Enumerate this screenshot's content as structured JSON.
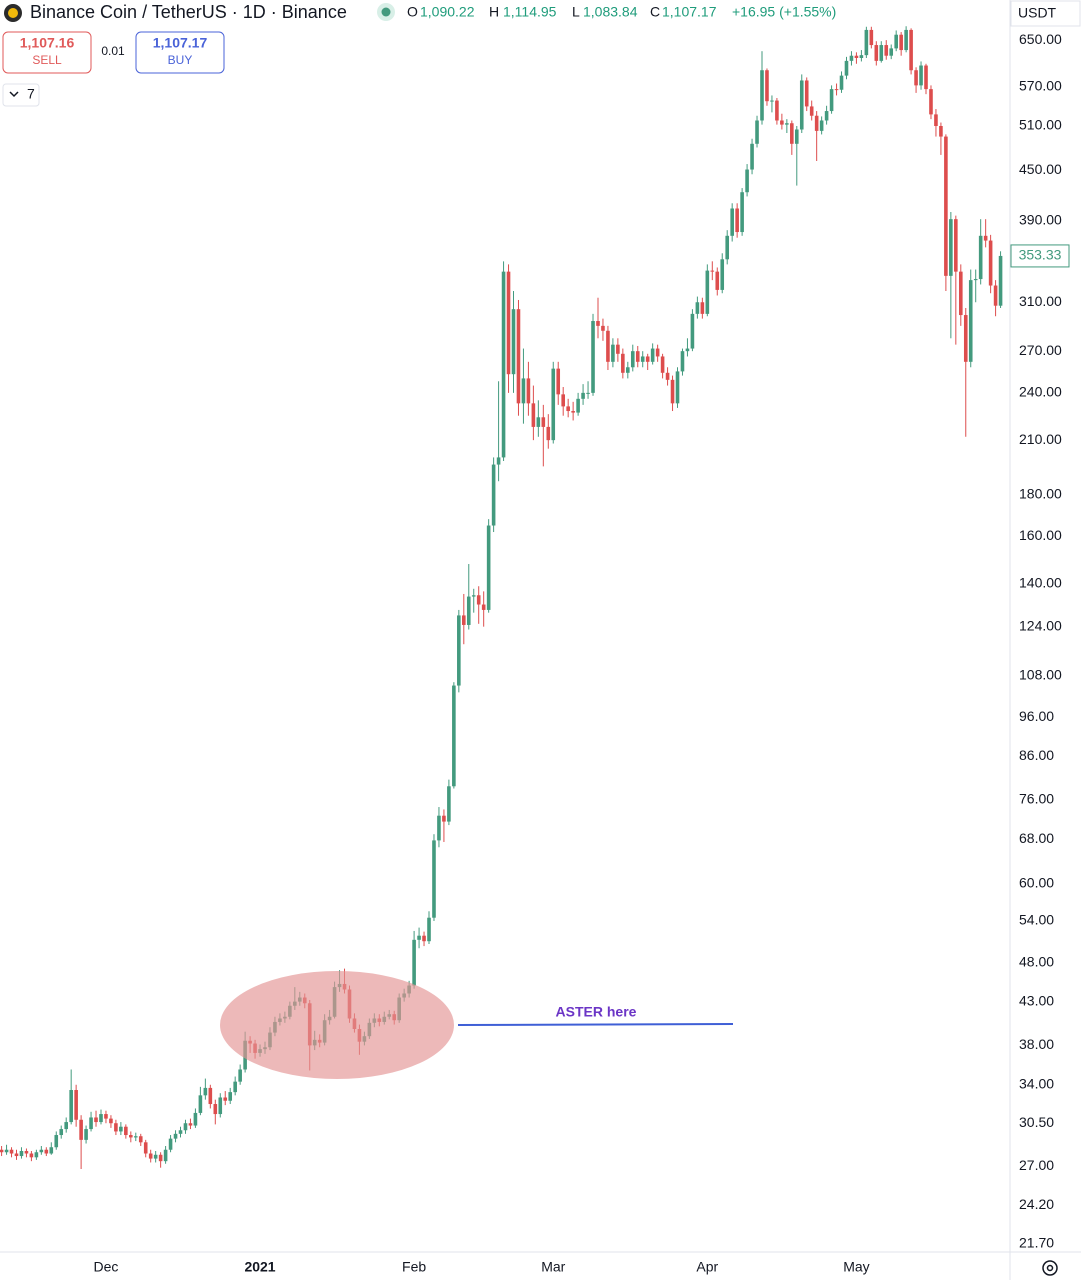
{
  "chart_data": {
    "type": "candlestick",
    "title": "Binance Coin / TetherUS · 1D · Binance",
    "legend_ohlc": [
      {
        "label": "O",
        "value": "1,090.22"
      },
      {
        "label": "H",
        "value": "1,114.95"
      },
      {
        "label": "L",
        "value": "1,083.84"
      },
      {
        "label": "C",
        "value": "1,107.17"
      }
    ],
    "change": "+16.95 (+1.55%)",
    "sell_price": "1,107.16",
    "sell_label": "SELL",
    "spread": "0.01",
    "buy_price": "1,107.17",
    "buy_label": "BUY",
    "indicator_count": "7",
    "currency": "USDT",
    "last_price": 353.33,
    "annotation": "ASTER here",
    "up_color": "#439a7e",
    "down_color": "#dd4d4d",
    "log_scale": true,
    "grid": false,
    "ylim": [
      21.2,
      728
    ],
    "yticks": [
      {
        "value": 650,
        "label": "650.00"
      },
      {
        "value": 570,
        "label": "570.00"
      },
      {
        "value": 510,
        "label": "510.00"
      },
      {
        "value": 450,
        "label": "450.00"
      },
      {
        "value": 390,
        "label": "390.00"
      },
      {
        "value": 310,
        "label": "310.00"
      },
      {
        "value": 270,
        "label": "270.00"
      },
      {
        "value": 240,
        "label": "240.00"
      },
      {
        "value": 210,
        "label": "210.00"
      },
      {
        "value": 180,
        "label": "180.00"
      },
      {
        "value": 160,
        "label": "160.00"
      },
      {
        "value": 140,
        "label": "140.00"
      },
      {
        "value": 124,
        "label": "124.00"
      },
      {
        "value": 108,
        "label": "108.00"
      },
      {
        "value": 96,
        "label": "96.00"
      },
      {
        "value": 86,
        "label": "86.00"
      },
      {
        "value": 76,
        "label": "76.00"
      },
      {
        "value": 68,
        "label": "68.00"
      },
      {
        "value": 60,
        "label": "60.00"
      },
      {
        "value": 54,
        "label": "54.00"
      },
      {
        "value": 48,
        "label": "48.00"
      },
      {
        "value": 43,
        "label": "43.00"
      },
      {
        "value": 38,
        "label": "38.00"
      },
      {
        "value": 34,
        "label": "34.00"
      },
      {
        "value": 30.5,
        "label": "30.50"
      },
      {
        "value": 27,
        "label": "27.00"
      },
      {
        "value": 24.2,
        "label": "24.20"
      },
      {
        "value": 21.7,
        "label": "21.70"
      }
    ],
    "xlim": [
      -0.32,
      202.9
    ],
    "xticks": [
      {
        "value": 21,
        "label": "Dec"
      },
      {
        "value": 52,
        "label": "2021"
      },
      {
        "value": 83,
        "label": "Feb"
      },
      {
        "value": 111,
        "label": "Mar"
      },
      {
        "value": 142,
        "label": "Apr"
      },
      {
        "value": 172,
        "label": "May"
      }
    ],
    "ohlc": [
      [
        28.3,
        28.6,
        27.8,
        28.1
      ],
      [
        28.1,
        28.7,
        27.9,
        28.3
      ],
      [
        28.3,
        28.5,
        27.7,
        28.0
      ],
      [
        28.0,
        28.3,
        27.5,
        27.8
      ],
      [
        27.8,
        28.5,
        27.6,
        28.2
      ],
      [
        28.2,
        28.4,
        27.7,
        28.0
      ],
      [
        28.0,
        28.2,
        27.4,
        27.7
      ],
      [
        27.7,
        28.3,
        27.5,
        28.1
      ],
      [
        28.1,
        28.6,
        27.9,
        28.3
      ],
      [
        28.3,
        28.5,
        27.8,
        28.0
      ],
      [
        28.0,
        28.9,
        27.9,
        28.5
      ],
      [
        28.5,
        29.8,
        28.3,
        29.5
      ],
      [
        29.5,
        30.3,
        29.2,
        30.0
      ],
      [
        30.0,
        31.0,
        29.7,
        30.6
      ],
      [
        30.6,
        35.5,
        30.4,
        33.5
      ],
      [
        33.5,
        34.0,
        30.2,
        30.8
      ],
      [
        30.8,
        31.2,
        26.8,
        29.1
      ],
      [
        29.1,
        30.3,
        28.8,
        30.0
      ],
      [
        30.0,
        31.5,
        29.8,
        31.0
      ],
      [
        31.0,
        31.6,
        30.2,
        30.6
      ],
      [
        30.6,
        31.7,
        30.4,
        31.3
      ],
      [
        31.3,
        31.6,
        30.5,
        30.9
      ],
      [
        30.9,
        31.2,
        30.1,
        30.5
      ],
      [
        30.5,
        30.8,
        29.5,
        29.8
      ],
      [
        29.8,
        30.6,
        29.5,
        30.2
      ],
      [
        30.2,
        30.4,
        29.2,
        29.5
      ],
      [
        29.5,
        29.8,
        28.9,
        29.3
      ],
      [
        29.3,
        29.7,
        29.0,
        29.4
      ],
      [
        29.4,
        29.6,
        28.6,
        28.9
      ],
      [
        28.9,
        29.1,
        27.7,
        28.0
      ],
      [
        28.0,
        28.3,
        27.3,
        27.6
      ],
      [
        27.6,
        28.2,
        27.3,
        27.9
      ],
      [
        27.9,
        28.1,
        26.9,
        27.4
      ],
      [
        27.4,
        28.6,
        27.2,
        28.3
      ],
      [
        28.3,
        29.5,
        28.1,
        29.2
      ],
      [
        29.2,
        29.9,
        28.9,
        29.6
      ],
      [
        29.6,
        30.2,
        29.3,
        29.9
      ],
      [
        29.9,
        30.8,
        29.6,
        30.5
      ],
      [
        30.5,
        30.9,
        30.0,
        30.3
      ],
      [
        30.3,
        31.8,
        30.1,
        31.4
      ],
      [
        31.4,
        33.8,
        31.2,
        33.0
      ],
      [
        33.0,
        34.6,
        32.6,
        33.7
      ],
      [
        33.7,
        34.0,
        31.8,
        32.2
      ],
      [
        32.2,
        32.6,
        30.4,
        31.3
      ],
      [
        31.3,
        33.2,
        31.0,
        32.8
      ],
      [
        32.8,
        33.4,
        32.1,
        32.5
      ],
      [
        32.5,
        33.7,
        32.2,
        33.3
      ],
      [
        33.3,
        34.8,
        33.0,
        34.3
      ],
      [
        34.3,
        36.0,
        34.0,
        35.5
      ],
      [
        35.5,
        39.5,
        35.2,
        38.5
      ],
      [
        38.5,
        39.0,
        37.2,
        38.2
      ],
      [
        38.2,
        38.6,
        36.6,
        37.2
      ],
      [
        37.2,
        38.1,
        36.8,
        37.6
      ],
      [
        37.6,
        38.4,
        37.1,
        37.8
      ],
      [
        37.8,
        40.0,
        37.5,
        39.4
      ],
      [
        39.4,
        41.2,
        39.0,
        40.6
      ],
      [
        40.6,
        41.6,
        40.2,
        41.0
      ],
      [
        41.0,
        41.8,
        40.5,
        41.2
      ],
      [
        41.2,
        43.0,
        40.9,
        42.5
      ],
      [
        42.5,
        44.8,
        42.0,
        43.0
      ],
      [
        43.0,
        44.2,
        42.5,
        43.5
      ],
      [
        43.5,
        44.0,
        42.2,
        42.8
      ],
      [
        42.8,
        43.2,
        35.4,
        38.0
      ],
      [
        38.0,
        39.6,
        37.5,
        38.6
      ],
      [
        38.6,
        39.2,
        37.8,
        38.3
      ],
      [
        38.3,
        41.5,
        38.0,
        40.8
      ],
      [
        40.8,
        42.0,
        40.3,
        41.2
      ],
      [
        41.2,
        45.5,
        41.0,
        44.8
      ],
      [
        44.8,
        47.0,
        44.2,
        45.2
      ],
      [
        45.2,
        47.2,
        44.0,
        44.5
      ],
      [
        44.5,
        45.0,
        40.5,
        41.0
      ],
      [
        41.0,
        41.6,
        39.4,
        39.8
      ],
      [
        39.8,
        40.3,
        37.0,
        38.4
      ],
      [
        38.4,
        39.5,
        38.0,
        39.0
      ],
      [
        39.0,
        41.0,
        38.7,
        40.5
      ],
      [
        40.5,
        41.6,
        40.0,
        41.0
      ],
      [
        41.0,
        41.5,
        40.1,
        40.6
      ],
      [
        40.6,
        41.8,
        40.3,
        41.2
      ],
      [
        41.2,
        42.0,
        40.9,
        41.5
      ],
      [
        41.5,
        41.9,
        40.3,
        40.8
      ],
      [
        40.8,
        44.0,
        40.5,
        43.5
      ],
      [
        43.5,
        44.6,
        43.0,
        44.0
      ],
      [
        44.0,
        45.6,
        43.5,
        45.0
      ],
      [
        45.0,
        52.5,
        44.6,
        51.2
      ],
      [
        51.2,
        53.0,
        50.0,
        51.8
      ],
      [
        51.8,
        52.4,
        50.3,
        51.0
      ],
      [
        51.0,
        55.5,
        50.6,
        54.5
      ],
      [
        54.5,
        69.0,
        54.0,
        67.8
      ],
      [
        67.8,
        74.5,
        66.5,
        72.7
      ],
      [
        72.7,
        74.0,
        67.5,
        71.5
      ],
      [
        71.5,
        80.5,
        70.8,
        79.0
      ],
      [
        79.0,
        106,
        78.5,
        105
      ],
      [
        105,
        130,
        103,
        128
      ],
      [
        128,
        136,
        118,
        124.6
      ],
      [
        124.6,
        148,
        123,
        135
      ],
      [
        135,
        138,
        129,
        135.5
      ],
      [
        135.5,
        139,
        125,
        132
      ],
      [
        132,
        137,
        124,
        130
      ],
      [
        130,
        168,
        129,
        165
      ],
      [
        165,
        200,
        162,
        196
      ],
      [
        196,
        248,
        187,
        200
      ],
      [
        200,
        348,
        198,
        338
      ],
      [
        338,
        345,
        240,
        253
      ],
      [
        253,
        320,
        240,
        304
      ],
      [
        304,
        312,
        225,
        233
      ],
      [
        233,
        272,
        220,
        250
      ],
      [
        250,
        262,
        225,
        233
      ],
      [
        233,
        245,
        210,
        218
      ],
      [
        218,
        235,
        212,
        224
      ],
      [
        224,
        232,
        195,
        218
      ],
      [
        218,
        226,
        205,
        210
      ],
      [
        210,
        262,
        208,
        257
      ],
      [
        257,
        262,
        232,
        239
      ],
      [
        239,
        244,
        225,
        231
      ],
      [
        231,
        236,
        224,
        228
      ],
      [
        228,
        234,
        222,
        227
      ],
      [
        227,
        240,
        225,
        236
      ],
      [
        236,
        246,
        232,
        240
      ],
      [
        240,
        248,
        236,
        240
      ],
      [
        240,
        300,
        238,
        294
      ],
      [
        294,
        314,
        280,
        290
      ],
      [
        290,
        296,
        278,
        286
      ],
      [
        286,
        290,
        256,
        262
      ],
      [
        262,
        280,
        258,
        275
      ],
      [
        275,
        280,
        262,
        268
      ],
      [
        268,
        272,
        250,
        254
      ],
      [
        254,
        262,
        250,
        258
      ],
      [
        258,
        275,
        255,
        270
      ],
      [
        270,
        274,
        258,
        262
      ],
      [
        262,
        270,
        258,
        266
      ],
      [
        266,
        268,
        256,
        262
      ],
      [
        262,
        276,
        260,
        272
      ],
      [
        272,
        275,
        262,
        266
      ],
      [
        266,
        268,
        250,
        254
      ],
      [
        254,
        258,
        245,
        249
      ],
      [
        249,
        252,
        228,
        233
      ],
      [
        233,
        258,
        230,
        255
      ],
      [
        255,
        272,
        252,
        270
      ],
      [
        270,
        280,
        266,
        272
      ],
      [
        272,
        304,
        270,
        300
      ],
      [
        300,
        315,
        296,
        310
      ],
      [
        310,
        314,
        296,
        300
      ],
      [
        300,
        345,
        298,
        339
      ],
      [
        339,
        348,
        330,
        338
      ],
      [
        338,
        342,
        316,
        321
      ],
      [
        321,
        356,
        318,
        350
      ],
      [
        350,
        380,
        345,
        374
      ],
      [
        374,
        410,
        368,
        404
      ],
      [
        404,
        410,
        372,
        378
      ],
      [
        378,
        428,
        374,
        423
      ],
      [
        423,
        458,
        418,
        451
      ],
      [
        451,
        492,
        445,
        485
      ],
      [
        485,
        525,
        480,
        518
      ],
      [
        518,
        630,
        512,
        597
      ],
      [
        597,
        600,
        540,
        547
      ],
      [
        547,
        556,
        530,
        548
      ],
      [
        548,
        552,
        512,
        518
      ],
      [
        518,
        528,
        505,
        512
      ],
      [
        512,
        520,
        500,
        514
      ],
      [
        514,
        518,
        470,
        485
      ],
      [
        485,
        510,
        431,
        505
      ],
      [
        505,
        590,
        500,
        580
      ],
      [
        580,
        585,
        532,
        539
      ],
      [
        539,
        548,
        518,
        525
      ],
      [
        525,
        532,
        462,
        503
      ],
      [
        503,
        524,
        498,
        518
      ],
      [
        518,
        540,
        512,
        532
      ],
      [
        532,
        572,
        528,
        566
      ],
      [
        566,
        575,
        556,
        565
      ],
      [
        565,
        595,
        560,
        588
      ],
      [
        588,
        620,
        582,
        613
      ],
      [
        613,
        630,
        605,
        622
      ],
      [
        622,
        628,
        608,
        618
      ],
      [
        618,
        632,
        612,
        623
      ],
      [
        623,
        675,
        618,
        669
      ],
      [
        669,
        675,
        635,
        641
      ],
      [
        641,
        648,
        605,
        613
      ],
      [
        613,
        648,
        610,
        641
      ],
      [
        641,
        650,
        615,
        622
      ],
      [
        622,
        642,
        616,
        635
      ],
      [
        635,
        668,
        630,
        660
      ],
      [
        660,
        665,
        622,
        632
      ],
      [
        632,
        676,
        628,
        669
      ],
      [
        669,
        672,
        590,
        597
      ],
      [
        597,
        602,
        560,
        572
      ],
      [
        572,
        612,
        565,
        605
      ],
      [
        605,
        608,
        558,
        566
      ],
      [
        566,
        572,
        520,
        527
      ],
      [
        527,
        535,
        495,
        510
      ],
      [
        510,
        515,
        470,
        495
      ],
      [
        495,
        498,
        320,
        334
      ],
      [
        334,
        400,
        280,
        392
      ],
      [
        392,
        396,
        275,
        338
      ],
      [
        338,
        345,
        290,
        299
      ],
      [
        299,
        305,
        212,
        262
      ],
      [
        262,
        340,
        258,
        330
      ],
      [
        330,
        340,
        310,
        331
      ],
      [
        331,
        392,
        326,
        374
      ],
      [
        374,
        392,
        362,
        369
      ],
      [
        369,
        375,
        318,
        325
      ],
      [
        325,
        330,
        298,
        307
      ],
      [
        307,
        358,
        305,
        353.33
      ]
    ]
  }
}
